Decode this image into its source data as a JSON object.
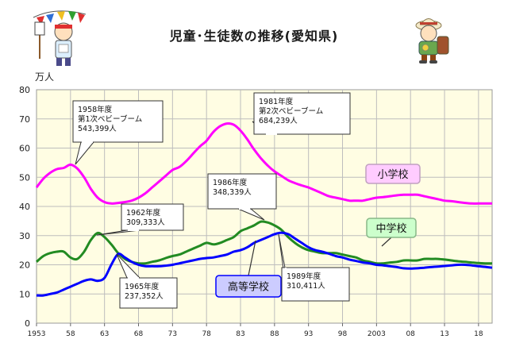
{
  "title": "児童･生徒数の推移(愛知県)",
  "chart_data": {
    "type": "line",
    "ylabel": "万人",
    "ylim": [
      0,
      80
    ],
    "yticks": [
      0,
      10,
      20,
      30,
      40,
      50,
      60,
      70,
      80
    ],
    "xlim": [
      1953,
      2020
    ],
    "xticks": [
      {
        "value": 1953,
        "label": "1953"
      },
      {
        "value": 1958,
        "label": "58"
      },
      {
        "value": 1963,
        "label": "63"
      },
      {
        "value": 1968,
        "label": "68"
      },
      {
        "value": 1973,
        "label": "73"
      },
      {
        "value": 1978,
        "label": "78"
      },
      {
        "value": 1983,
        "label": "83"
      },
      {
        "value": 1988,
        "label": "88"
      },
      {
        "value": 1993,
        "label": "93"
      },
      {
        "value": 1998,
        "label": "98"
      },
      {
        "value": 2003,
        "label": "2003"
      },
      {
        "value": 2008,
        "label": "08"
      },
      {
        "value": 2013,
        "label": "13"
      },
      {
        "value": 2018,
        "label": "18"
      }
    ],
    "grid": true,
    "series": [
      {
        "name": "小学校",
        "color": "#ff00ff",
        "label_box": {
          "fill": "#ffccff",
          "stroke": "#c0a0c0"
        },
        "points": [
          [
            1953,
            46.5
          ],
          [
            1954,
            49.5
          ],
          [
            1955,
            51.5
          ],
          [
            1956,
            52.8
          ],
          [
            1957,
            53.2
          ],
          [
            1958,
            54.3
          ],
          [
            1959,
            53.0
          ],
          [
            1960,
            50.0
          ],
          [
            1961,
            46.0
          ],
          [
            1962,
            43.0
          ],
          [
            1963,
            41.5
          ],
          [
            1964,
            41.0
          ],
          [
            1965,
            41.2
          ],
          [
            1966,
            41.5
          ],
          [
            1967,
            42.0
          ],
          [
            1968,
            43.0
          ],
          [
            1969,
            44.5
          ],
          [
            1970,
            46.5
          ],
          [
            1971,
            48.5
          ],
          [
            1972,
            50.5
          ],
          [
            1973,
            52.5
          ],
          [
            1974,
            53.5
          ],
          [
            1975,
            55.5
          ],
          [
            1976,
            58.0
          ],
          [
            1977,
            60.5
          ],
          [
            1978,
            62.5
          ],
          [
            1979,
            65.5
          ],
          [
            1980,
            67.5
          ],
          [
            1981,
            68.4
          ],
          [
            1982,
            68.0
          ],
          [
            1983,
            66.0
          ],
          [
            1984,
            63.0
          ],
          [
            1985,
            59.5
          ],
          [
            1986,
            56.5
          ],
          [
            1987,
            54.0
          ],
          [
            1988,
            52.0
          ],
          [
            1989,
            50.5
          ],
          [
            1990,
            49.0
          ],
          [
            1991,
            48.0
          ],
          [
            1992,
            47.2
          ],
          [
            1993,
            46.5
          ],
          [
            1994,
            45.5
          ],
          [
            1995,
            44.5
          ],
          [
            1996,
            43.5
          ],
          [
            1997,
            43.0
          ],
          [
            1998,
            42.5
          ],
          [
            1999,
            42.0
          ],
          [
            2000,
            42.0
          ],
          [
            2001,
            42.0
          ],
          [
            2002,
            42.5
          ],
          [
            2003,
            43.0
          ],
          [
            2004,
            43.2
          ],
          [
            2005,
            43.5
          ],
          [
            2006,
            43.8
          ],
          [
            2007,
            44.0
          ],
          [
            2008,
            44.0
          ],
          [
            2009,
            44.0
          ],
          [
            2010,
            43.5
          ],
          [
            2011,
            43.0
          ],
          [
            2012,
            42.5
          ],
          [
            2013,
            42.0
          ],
          [
            2014,
            41.8
          ],
          [
            2015,
            41.5
          ],
          [
            2016,
            41.2
          ],
          [
            2017,
            41.0
          ],
          [
            2018,
            41.0
          ],
          [
            2019,
            41.0
          ],
          [
            2020,
            41.0
          ]
        ]
      },
      {
        "name": "中学校",
        "color": "#228b22",
        "label_box": {
          "fill": "#ccffcc",
          "stroke": "#88b888"
        },
        "points": [
          [
            1953,
            21.0
          ],
          [
            1954,
            23.0
          ],
          [
            1955,
            24.0
          ],
          [
            1956,
            24.5
          ],
          [
            1957,
            24.5
          ],
          [
            1958,
            22.5
          ],
          [
            1959,
            22.0
          ],
          [
            1960,
            24.5
          ],
          [
            1961,
            28.5
          ],
          [
            1962,
            30.9
          ],
          [
            1963,
            29.5
          ],
          [
            1964,
            27.0
          ],
          [
            1965,
            24.0
          ],
          [
            1966,
            22.0
          ],
          [
            1967,
            21.0
          ],
          [
            1968,
            20.5
          ],
          [
            1969,
            20.5
          ],
          [
            1970,
            21.0
          ],
          [
            1971,
            21.5
          ],
          [
            1972,
            22.3
          ],
          [
            1973,
            23.0
          ],
          [
            1974,
            23.5
          ],
          [
            1975,
            24.5
          ],
          [
            1976,
            25.5
          ],
          [
            1977,
            26.5
          ],
          [
            1978,
            27.5
          ],
          [
            1979,
            27.0
          ],
          [
            1980,
            27.5
          ],
          [
            1981,
            28.5
          ],
          [
            1982,
            29.5
          ],
          [
            1983,
            31.5
          ],
          [
            1984,
            32.5
          ],
          [
            1985,
            33.5
          ],
          [
            1986,
            34.8
          ],
          [
            1987,
            34.5
          ],
          [
            1988,
            33.5
          ],
          [
            1989,
            32.0
          ],
          [
            1990,
            29.5
          ],
          [
            1991,
            27.5
          ],
          [
            1992,
            26.0
          ],
          [
            1993,
            25.0
          ],
          [
            1994,
            24.5
          ],
          [
            1995,
            24.0
          ],
          [
            1996,
            24.0
          ],
          [
            1997,
            24.0
          ],
          [
            1998,
            23.5
          ],
          [
            1999,
            23.0
          ],
          [
            2000,
            22.5
          ],
          [
            2001,
            21.5
          ],
          [
            2002,
            21.0
          ],
          [
            2003,
            20.5
          ],
          [
            2004,
            20.5
          ],
          [
            2005,
            20.8
          ],
          [
            2006,
            21.0
          ],
          [
            2007,
            21.5
          ],
          [
            2008,
            21.5
          ],
          [
            2009,
            21.5
          ],
          [
            2010,
            22.0
          ],
          [
            2011,
            22.0
          ],
          [
            2012,
            22.0
          ],
          [
            2013,
            21.8
          ],
          [
            2014,
            21.5
          ],
          [
            2015,
            21.2
          ],
          [
            2016,
            21.0
          ],
          [
            2017,
            20.8
          ],
          [
            2018,
            20.6
          ],
          [
            2019,
            20.5
          ],
          [
            2020,
            20.5
          ]
        ]
      },
      {
        "name": "高等学校",
        "color": "#0000ff",
        "label_box": {
          "fill": "#ccccff",
          "stroke": "#0000ff"
        },
        "points": [
          [
            1953,
            9.5
          ],
          [
            1954,
            9.5
          ],
          [
            1955,
            10.0
          ],
          [
            1956,
            10.5
          ],
          [
            1957,
            11.5
          ],
          [
            1958,
            12.5
          ],
          [
            1959,
            13.5
          ],
          [
            1960,
            14.5
          ],
          [
            1961,
            15.0
          ],
          [
            1962,
            14.5
          ],
          [
            1963,
            15.5
          ],
          [
            1964,
            20.0
          ],
          [
            1965,
            23.7
          ],
          [
            1966,
            22.5
          ],
          [
            1967,
            21.0
          ],
          [
            1968,
            20.0
          ],
          [
            1969,
            19.5
          ],
          [
            1970,
            19.5
          ],
          [
            1971,
            19.5
          ],
          [
            1972,
            19.7
          ],
          [
            1973,
            20.0
          ],
          [
            1974,
            20.5
          ],
          [
            1975,
            21.0
          ],
          [
            1976,
            21.5
          ],
          [
            1977,
            22.0
          ],
          [
            1978,
            22.3
          ],
          [
            1979,
            22.5
          ],
          [
            1980,
            23.0
          ],
          [
            1981,
            23.5
          ],
          [
            1982,
            24.5
          ],
          [
            1983,
            25.0
          ],
          [
            1984,
            26.0
          ],
          [
            1985,
            27.5
          ],
          [
            1986,
            28.5
          ],
          [
            1987,
            29.5
          ],
          [
            1988,
            30.5
          ],
          [
            1989,
            31.0
          ],
          [
            1990,
            30.5
          ],
          [
            1991,
            29.0
          ],
          [
            1992,
            27.5
          ],
          [
            1993,
            26.0
          ],
          [
            1994,
            25.0
          ],
          [
            1995,
            24.5
          ],
          [
            1996,
            23.8
          ],
          [
            1997,
            23.0
          ],
          [
            1998,
            22.5
          ],
          [
            1999,
            21.8
          ],
          [
            2000,
            21.3
          ],
          [
            2001,
            20.8
          ],
          [
            2002,
            20.5
          ],
          [
            2003,
            20.0
          ],
          [
            2004,
            19.8
          ],
          [
            2005,
            19.5
          ],
          [
            2006,
            19.2
          ],
          [
            2007,
            18.8
          ],
          [
            2008,
            18.7
          ],
          [
            2009,
            18.8
          ],
          [
            2010,
            19.0
          ],
          [
            2011,
            19.2
          ],
          [
            2012,
            19.4
          ],
          [
            2013,
            19.6
          ],
          [
            2014,
            19.8
          ],
          [
            2015,
            20.0
          ],
          [
            2016,
            20.0
          ],
          [
            2017,
            19.8
          ],
          [
            2018,
            19.5
          ],
          [
            2019,
            19.3
          ],
          [
            2020,
            19.0
          ]
        ]
      }
    ],
    "annotations": [
      {
        "lines": [
          "1958年度",
          "第1次ベビーブーム",
          "543,399人"
        ],
        "x": 1958,
        "y": 54.3
      },
      {
        "lines": [
          "1981年度",
          "第2次ベビーブーム",
          "684,239人"
        ],
        "x": 1981,
        "y": 68.4
      },
      {
        "lines": [
          "1962年度",
          "309,333人"
        ],
        "x": 1962,
        "y": 30.9
      },
      {
        "lines": [
          "1986年度",
          "348,339人"
        ],
        "x": 1986,
        "y": 34.8
      },
      {
        "lines": [
          "1965年度",
          "237,352人"
        ],
        "x": 1965,
        "y": 23.7
      },
      {
        "lines": [
          "1989年度",
          "310,411人"
        ],
        "x": 1989,
        "y": 31.0
      }
    ]
  },
  "decorations": {
    "left_figure": "boy-with-flags-illustration",
    "right_figure": "child-with-backpack-illustration"
  }
}
